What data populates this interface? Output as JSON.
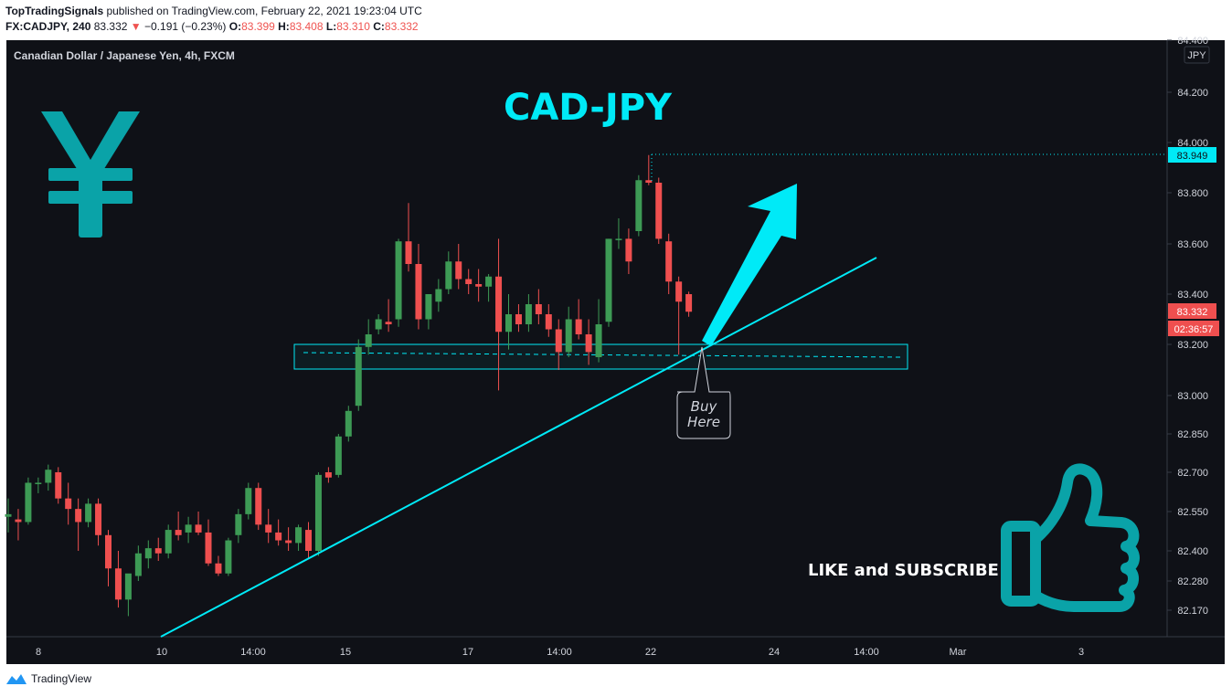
{
  "header": {
    "author": "TopTradingSignals",
    "published_text": " published on TradingView.com, February 22, 2021 19:23:04 UTC",
    "symbol": "FX:CADJPY, 240",
    "last": "83.332",
    "change_arrow": "▼",
    "change": "−0.191 (−0.23%)",
    "o_label": "O:",
    "o_val": "83.399",
    "h_label": "H:",
    "h_val": "83.408",
    "l_label": "L:",
    "l_val": "83.310",
    "c_label": "C:",
    "c_val": "83.332"
  },
  "legend_title": "Canadian Dollar / Japanese Yen, 4h, FXCM",
  "currency": "JPY",
  "annotations": {
    "main_title": "CAD-JPY",
    "buy_line1": "Buy",
    "buy_line2": "Here",
    "cta": "LIKE and SUBSCRIBE",
    "yen_symbol": "¥"
  },
  "price_labels": {
    "high_line": "83.949",
    "last": "83.332",
    "countdown": "02:36:57"
  },
  "footer": {
    "brand": "TradingView"
  },
  "colors": {
    "background": "#0f1117",
    "up": "#3d9a55",
    "down": "#ef4f4f",
    "accent": "#00eaf7",
    "teal_icon": "#0aa3a8",
    "axis_text": "#d1d4dc"
  },
  "chart_data": {
    "type": "candlestick",
    "title": "Canadian Dollar / Japanese Yen, 4h, FXCM",
    "ylim": [
      82.08,
      84.43
    ],
    "y_ticks": [
      "84.400",
      "84.200",
      "84.000",
      "83.800",
      "83.600",
      "83.400",
      "83.200",
      "83.000",
      "82.850",
      "82.700",
      "82.550",
      "82.400",
      "82.280",
      "82.170"
    ],
    "x_ticks": [
      "8",
      "10",
      "14:00",
      "15",
      "17",
      "14:00",
      "22",
      "24",
      "14:00",
      "Mar",
      "3"
    ],
    "candles": [
      [
        82.53,
        82.6,
        82.47,
        82.54
      ],
      [
        82.52,
        82.56,
        82.44,
        82.51
      ],
      [
        82.51,
        82.68,
        82.5,
        82.66
      ],
      [
        82.66,
        82.68,
        82.62,
        82.66
      ],
      [
        82.66,
        82.73,
        82.63,
        82.71
      ],
      [
        82.7,
        82.72,
        82.58,
        82.6
      ],
      [
        82.6,
        82.66,
        82.5,
        82.56
      ],
      [
        82.56,
        82.6,
        82.4,
        82.51
      ],
      [
        82.51,
        82.6,
        82.49,
        82.58
      ],
      [
        82.58,
        82.6,
        82.42,
        82.46
      ],
      [
        82.46,
        82.48,
        82.26,
        82.33
      ],
      [
        82.33,
        82.4,
        82.18,
        82.21
      ],
      [
        82.21,
        82.3,
        82.15,
        82.31
      ],
      [
        82.3,
        82.42,
        82.28,
        82.39
      ],
      [
        82.37,
        82.44,
        82.33,
        82.41
      ],
      [
        82.41,
        82.45,
        82.36,
        82.39
      ],
      [
        82.39,
        82.5,
        82.37,
        82.48
      ],
      [
        82.48,
        82.55,
        82.44,
        82.46
      ],
      [
        82.47,
        82.53,
        82.43,
        82.5
      ],
      [
        82.5,
        82.55,
        82.46,
        82.47
      ],
      [
        82.47,
        82.52,
        82.34,
        82.35
      ],
      [
        82.35,
        82.38,
        82.3,
        82.31
      ],
      [
        82.31,
        82.45,
        82.3,
        82.44
      ],
      [
        82.46,
        82.56,
        82.43,
        82.54
      ],
      [
        82.54,
        82.66,
        82.52,
        82.64
      ],
      [
        82.64,
        82.66,
        82.48,
        82.5
      ],
      [
        82.5,
        82.56,
        82.43,
        82.47
      ],
      [
        82.47,
        82.52,
        82.42,
        82.44
      ],
      [
        82.44,
        82.49,
        82.4,
        82.43
      ],
      [
        82.43,
        82.5,
        82.4,
        82.49
      ],
      [
        82.48,
        82.51,
        82.37,
        82.4
      ],
      [
        82.4,
        82.7,
        82.38,
        82.69
      ],
      [
        82.7,
        82.72,
        82.66,
        82.68
      ],
      [
        82.69,
        82.85,
        82.68,
        82.84
      ],
      [
        82.84,
        82.96,
        82.82,
        82.94
      ],
      [
        82.96,
        83.22,
        82.94,
        83.19
      ],
      [
        83.19,
        83.3,
        83.16,
        83.24
      ],
      [
        83.26,
        83.32,
        83.24,
        83.3
      ],
      [
        83.29,
        83.38,
        83.25,
        83.28
      ],
      [
        83.3,
        83.62,
        83.27,
        83.61
      ],
      [
        83.61,
        83.76,
        83.49,
        83.52
      ],
      [
        83.52,
        83.6,
        83.26,
        83.3
      ],
      [
        83.3,
        83.4,
        83.26,
        83.4
      ],
      [
        83.37,
        83.46,
        83.33,
        83.42
      ],
      [
        83.42,
        83.57,
        83.4,
        83.53
      ],
      [
        83.53,
        83.6,
        83.42,
        83.46
      ],
      [
        83.46,
        83.5,
        83.4,
        83.44
      ],
      [
        83.44,
        83.5,
        83.37,
        83.43
      ],
      [
        83.43,
        83.48,
        83.37,
        83.47
      ],
      [
        83.47,
        83.62,
        83.02,
        83.25
      ],
      [
        83.25,
        83.4,
        83.18,
        83.32
      ],
      [
        83.32,
        83.36,
        83.25,
        83.28
      ],
      [
        83.28,
        83.4,
        83.25,
        83.36
      ],
      [
        83.36,
        83.42,
        83.28,
        83.32
      ],
      [
        83.32,
        83.36,
        83.23,
        83.26
      ],
      [
        83.26,
        83.3,
        83.1,
        83.17
      ],
      [
        83.17,
        83.35,
        83.15,
        83.3
      ],
      [
        83.3,
        83.38,
        83.22,
        83.24
      ],
      [
        83.24,
        83.3,
        83.12,
        83.17
      ],
      [
        83.15,
        83.38,
        83.13,
        83.28
      ],
      [
        83.29,
        83.62,
        83.27,
        83.62
      ],
      [
        83.62,
        83.7,
        83.58,
        83.62
      ],
      [
        83.62,
        83.66,
        83.48,
        83.53
      ],
      [
        83.65,
        83.87,
        83.63,
        83.85
      ],
      [
        83.85,
        83.95,
        83.83,
        83.84
      ],
      [
        83.84,
        83.86,
        83.6,
        83.62
      ],
      [
        83.61,
        83.64,
        83.4,
        83.45
      ],
      [
        83.45,
        83.47,
        83.16,
        83.37
      ],
      [
        83.4,
        83.41,
        83.31,
        83.33
      ]
    ]
  }
}
